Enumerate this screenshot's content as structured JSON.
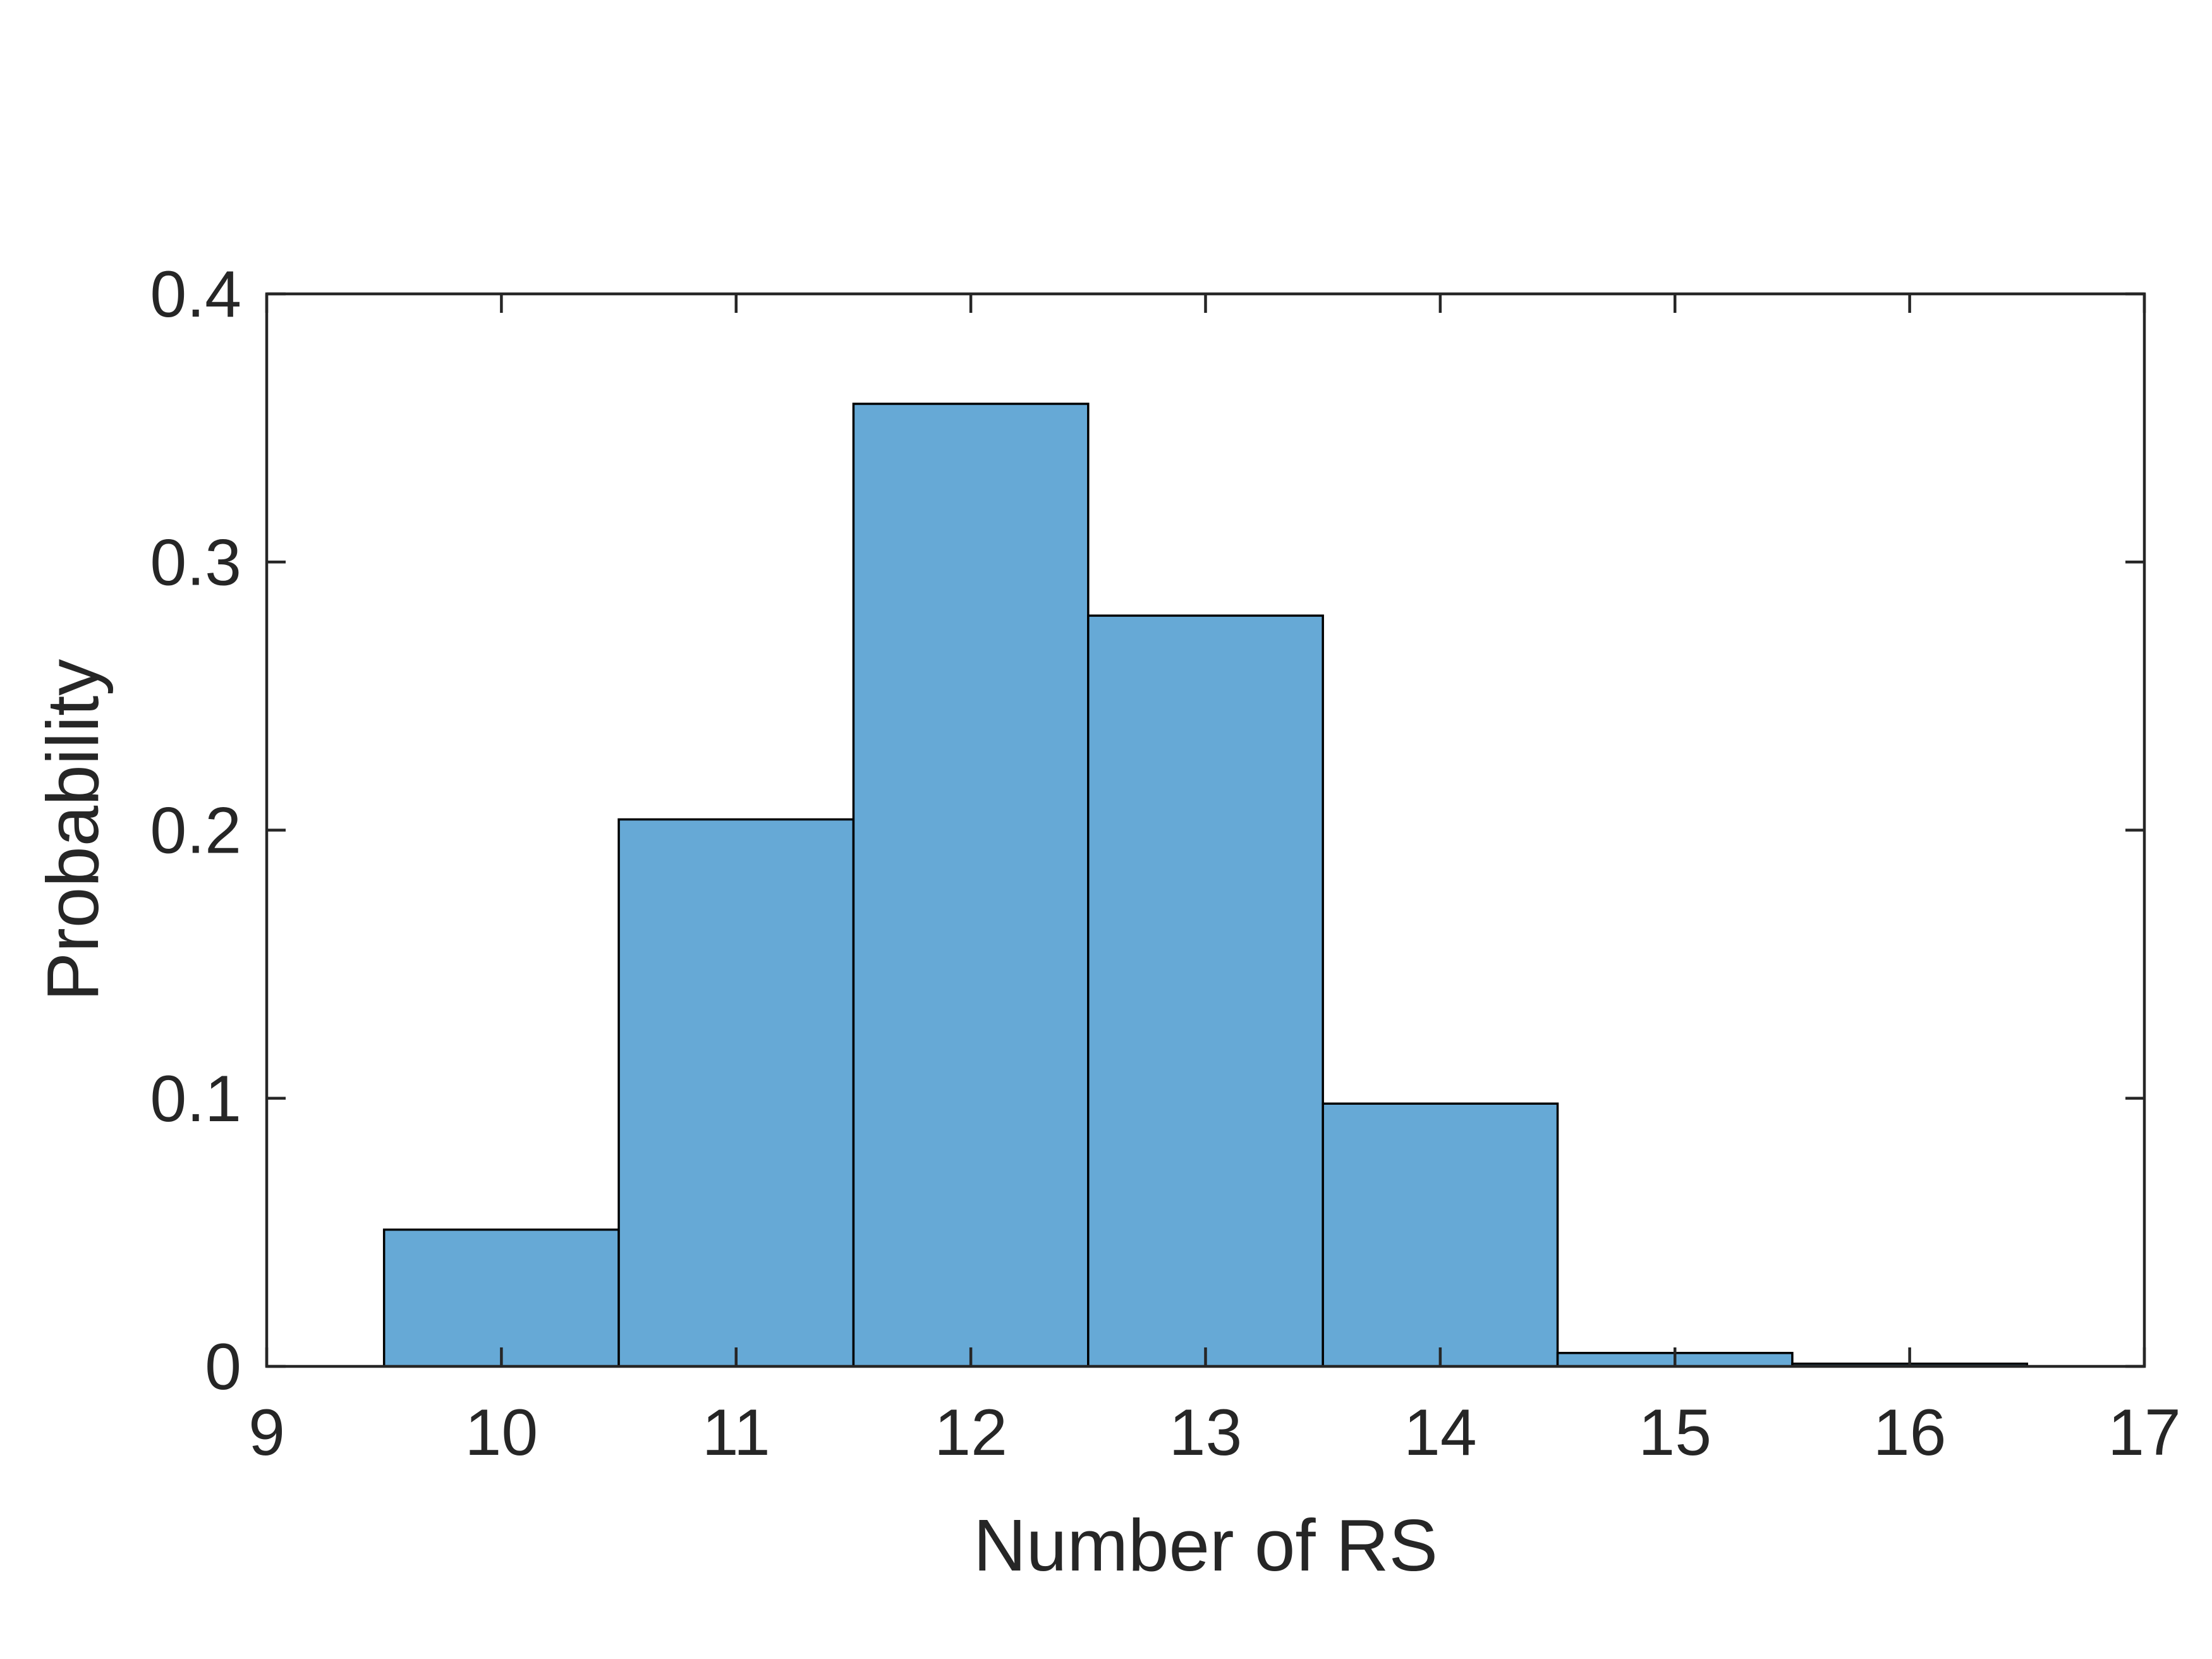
{
  "chart_data": {
    "type": "bar",
    "histogram": true,
    "title": "",
    "xlabel": "Number of RS",
    "ylabel": "Probability",
    "xlim": [
      9,
      17
    ],
    "ylim": [
      0,
      0.4
    ],
    "x_ticks": [
      9,
      10,
      11,
      12,
      13,
      14,
      15,
      16,
      17
    ],
    "x_tick_labels": [
      "9",
      "10",
      "11",
      "12",
      "13",
      "14",
      "15",
      "16",
      "17"
    ],
    "y_ticks": [
      0,
      0.1,
      0.2,
      0.3,
      0.4
    ],
    "y_tick_labels": [
      "0",
      "0.1",
      "0.2",
      "0.3",
      "0.4"
    ],
    "bin_width": 1,
    "categories": [
      "10",
      "11",
      "12",
      "13",
      "14",
      "15",
      "16"
    ],
    "x": [
      10,
      11,
      12,
      13,
      14,
      15,
      16
    ],
    "values": [
      0.051,
      0.204,
      0.359,
      0.28,
      0.098,
      0.005,
      0.001
    ],
    "bar_color": "#66A9D6",
    "edge_color": "#000000",
    "axis_color": "#262626",
    "grid": false,
    "box": true,
    "legend": "none"
  }
}
